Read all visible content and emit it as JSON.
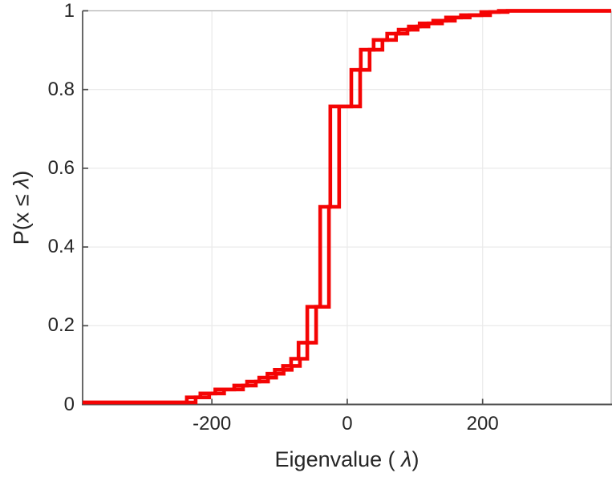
{
  "figure": {
    "background": "#ffffff",
    "xlabel_prefix": "Eigenvalue ( ",
    "xlabel_lambda": "λ",
    "xlabel_suffix": ")",
    "ylabel_prefix": "P(x ≤ ",
    "ylabel_lambda": "λ",
    "ylabel_suffix": ")"
  },
  "chart_data": {
    "type": "line",
    "subtype": "empirical-cdf-staircase",
    "title": "",
    "xlabel": "Eigenvalue ( λ)",
    "ylabel": "P(x ≤ λ)",
    "xlim": [
      -391,
      390
    ],
    "ylim": [
      0,
      1
    ],
    "xticks": {
      "values": [
        -200,
        0,
        200
      ],
      "labels": [
        "-200",
        "0",
        "200"
      ]
    },
    "yticks": {
      "values": [
        0,
        0.2,
        0.4,
        0.6,
        0.8,
        1
      ],
      "labels": [
        "0",
        "0.2",
        "0.4",
        "0.6",
        "0.8",
        "1"
      ]
    },
    "grid": true,
    "legend": "none",
    "colors": {
      "line": "#f40404",
      "axis": "#4d4d4d",
      "box": "#b4b4b4",
      "grid": "#ebebeb",
      "tick_label": "#262626"
    },
    "series": [
      {
        "name": "ecdf-step-curve-1",
        "start_level": 0.005,
        "jump_x": [
          -237,
          -217,
          -195,
          -167,
          -148,
          -130,
          -118,
          -107,
          -95,
          -83,
          -72,
          -59,
          -40,
          -25,
          6,
          20,
          39,
          59,
          76,
          91,
          107,
          127,
          146,
          168,
          198,
          224
        ],
        "levels_after": [
          0.018,
          0.028,
          0.038,
          0.048,
          0.058,
          0.068,
          0.078,
          0.088,
          0.098,
          0.116,
          0.157,
          0.248,
          0.502,
          0.757,
          0.85,
          0.901,
          0.926,
          0.942,
          0.952,
          0.96,
          0.968,
          0.975,
          0.983,
          0.989,
          0.997,
          1.0
        ]
      },
      {
        "name": "ecdf-step-curve-2",
        "start_level": 0.005,
        "jump_x": [
          -224,
          -204,
          -182,
          -154,
          -135,
          -117,
          -105,
          -94,
          -82,
          -70,
          -59,
          -46,
          -27,
          -12,
          19,
          33,
          52,
          72,
          89,
          104,
          120,
          140,
          159,
          181,
          211,
          237
        ],
        "levels_after": [
          0.018,
          0.028,
          0.038,
          0.048,
          0.058,
          0.068,
          0.078,
          0.088,
          0.098,
          0.116,
          0.157,
          0.248,
          0.502,
          0.757,
          0.85,
          0.901,
          0.926,
          0.942,
          0.952,
          0.96,
          0.968,
          0.975,
          0.983,
          0.989,
          0.997,
          1.0
        ]
      }
    ]
  }
}
